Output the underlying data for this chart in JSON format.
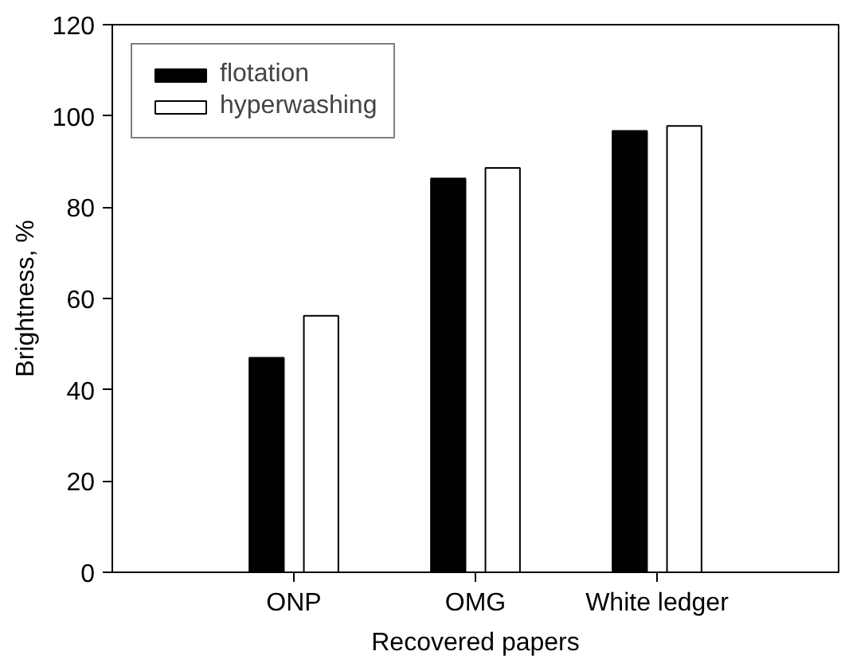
{
  "chart_data": {
    "type": "bar",
    "xlabel": "Recovered papers",
    "ylabel": "Brightness, %",
    "categories": [
      "ONP",
      "OMG",
      "White ledger"
    ],
    "series": [
      {
        "name": "flotation",
        "color": "#000000",
        "values": [
          47,
          86.3,
          96.7
        ]
      },
      {
        "name": "hyperwashing",
        "color": "#ffffff",
        "values": [
          56.2,
          88.6,
          97.8
        ]
      }
    ],
    "ylim": [
      0,
      120
    ],
    "yticks": [
      0,
      20,
      40,
      60,
      80,
      100,
      120
    ],
    "grid": false,
    "legend": "top left"
  }
}
